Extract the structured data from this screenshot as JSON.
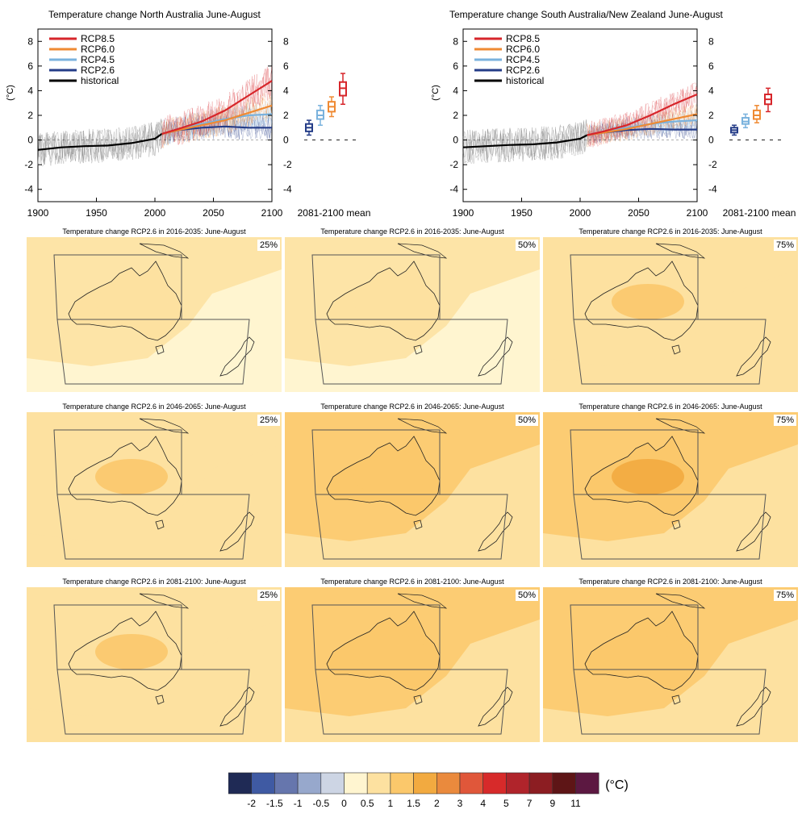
{
  "timeseries": [
    {
      "title": "Temperature change North Australia June-August",
      "ylabel": "(°C)",
      "mean_label": "2081-2100 mean"
    },
    {
      "title": "Temperature change South Australia/New Zealand June-August",
      "ylabel": "(°C)",
      "mean_label": "2081-2100 mean"
    }
  ],
  "maps": [
    {
      "title": "Temperature change RCP2.6 in 2016-2035: June-August",
      "pct": "25%"
    },
    {
      "title": "Temperature change RCP2.6 in 2016-2035: June-August",
      "pct": "50%"
    },
    {
      "title": "Temperature change RCP2.6 in 2016-2035: June-August",
      "pct": "75%"
    },
    {
      "title": "Temperature change RCP2.6 in 2046-2065: June-August",
      "pct": "25%"
    },
    {
      "title": "Temperature change RCP2.6 in 2046-2065: June-August",
      "pct": "50%"
    },
    {
      "title": "Temperature change RCP2.6 in 2046-2065: June-August",
      "pct": "75%"
    },
    {
      "title": "Temperature change RCP2.6 in 2081-2100: June-August",
      "pct": "25%"
    },
    {
      "title": "Temperature change RCP2.6 in 2081-2100: June-August",
      "pct": "50%"
    },
    {
      "title": "Temperature change RCP2.6 in 2081-2100: June-August",
      "pct": "75%"
    }
  ],
  "colorbar": {
    "unit": "(°C)",
    "labels": [
      "-2",
      "-1.5",
      "-1",
      "-0.5",
      "0",
      "0.5",
      "1",
      "1.5",
      "2",
      "3",
      "4",
      "5",
      "7",
      "9",
      "11"
    ],
    "colors": [
      "#1f2a55",
      "#3f5aa3",
      "#6676ad",
      "#97a8cc",
      "#cdd5e4",
      "#fff5d0",
      "#fde1a0",
      "#fbc86b",
      "#f2aa40",
      "#ea8a3d",
      "#e0573a",
      "#d72a2a",
      "#b0242b",
      "#8c1d22",
      "#5e1516",
      "#5c1841"
    ]
  },
  "chart_data": [
    {
      "type": "line",
      "title": "Temperature change North Australia June-August",
      "ylabel": "(°C)",
      "xlim": [
        1900,
        2100
      ],
      "ylim": [
        -5,
        9
      ],
      "xticks": [
        1900,
        1950,
        2000,
        2050,
        2100
      ],
      "yticks": [
        -4,
        -2,
        0,
        2,
        4,
        6,
        8
      ],
      "legend": "top-left",
      "series": [
        {
          "name": "RCP8.5",
          "color": "#d7262b",
          "x": [
            2006,
            2020,
            2040,
            2060,
            2080,
            2100
          ],
          "y": [
            0.5,
            0.9,
            1.5,
            2.4,
            3.6,
            4.8
          ]
        },
        {
          "name": "RCP6.0",
          "color": "#ef8a33",
          "x": [
            2006,
            2020,
            2040,
            2060,
            2080,
            2100
          ],
          "y": [
            0.5,
            0.8,
            1.2,
            1.6,
            2.2,
            2.8
          ]
        },
        {
          "name": "RCP4.5",
          "color": "#7ab2dd",
          "x": [
            2006,
            2020,
            2040,
            2060,
            2080,
            2100
          ],
          "y": [
            0.5,
            0.9,
            1.3,
            1.7,
            2.0,
            2.1
          ]
        },
        {
          "name": "RCP2.6",
          "color": "#253d88",
          "x": [
            2006,
            2020,
            2040,
            2060,
            2080,
            2100
          ],
          "y": [
            0.5,
            0.8,
            1.0,
            1.1,
            1.0,
            1.0
          ]
        },
        {
          "name": "historical",
          "color": "#000000",
          "x": [
            1900,
            1920,
            1940,
            1960,
            1980,
            2000,
            2006
          ],
          "y": [
            -0.8,
            -0.6,
            -0.5,
            -0.45,
            -0.25,
            0.1,
            0.5
          ]
        }
      ],
      "mean_label": "2081-2100 mean",
      "boxes": [
        {
          "name": "RCP2.6",
          "median": 1.0,
          "q1": 0.7,
          "q3": 1.3,
          "min": 0.4,
          "max": 1.6
        },
        {
          "name": "RCP4.5",
          "median": 2.0,
          "q1": 1.7,
          "q3": 2.4,
          "min": 1.2,
          "max": 2.8
        },
        {
          "name": "RCP6.0",
          "median": 2.7,
          "q1": 2.3,
          "q3": 3.1,
          "min": 1.9,
          "max": 3.5
        },
        {
          "name": "RCP8.5",
          "median": 4.2,
          "q1": 3.6,
          "q3": 4.7,
          "min": 2.9,
          "max": 5.4
        }
      ]
    },
    {
      "type": "line",
      "title": "Temperature change South Australia/New Zealand June-August",
      "ylabel": "(°C)",
      "xlim": [
        1900,
        2100
      ],
      "ylim": [
        -5,
        9
      ],
      "xticks": [
        1900,
        1950,
        2000,
        2050,
        2100
      ],
      "yticks": [
        -4,
        -2,
        0,
        2,
        4,
        6,
        8
      ],
      "legend": "top-left",
      "series": [
        {
          "name": "RCP8.5",
          "color": "#d7262b",
          "x": [
            2006,
            2020,
            2040,
            2060,
            2080,
            2100
          ],
          "y": [
            0.4,
            0.7,
            1.2,
            2.0,
            2.9,
            3.7
          ]
        },
        {
          "name": "RCP6.0",
          "color": "#ef8a33",
          "x": [
            2006,
            2020,
            2040,
            2060,
            2080,
            2100
          ],
          "y": [
            0.4,
            0.6,
            0.9,
            1.3,
            1.7,
            2.1
          ]
        },
        {
          "name": "RCP4.5",
          "color": "#7ab2dd",
          "x": [
            2006,
            2020,
            2040,
            2060,
            2080,
            2100
          ],
          "y": [
            0.4,
            0.7,
            1.0,
            1.3,
            1.5,
            1.6
          ]
        },
        {
          "name": "RCP2.6",
          "color": "#253d88",
          "x": [
            2006,
            2020,
            2040,
            2060,
            2080,
            2100
          ],
          "y": [
            0.4,
            0.6,
            0.8,
            0.9,
            0.85,
            0.85
          ]
        },
        {
          "name": "historical",
          "color": "#000000",
          "x": [
            1900,
            1920,
            1940,
            1960,
            1980,
            2000,
            2006
          ],
          "y": [
            -0.6,
            -0.5,
            -0.4,
            -0.35,
            -0.2,
            0.1,
            0.4
          ]
        }
      ],
      "mean_label": "2081-2100 mean",
      "boxes": [
        {
          "name": "RCP2.6",
          "median": 0.8,
          "q1": 0.6,
          "q3": 1.0,
          "min": 0.4,
          "max": 1.2
        },
        {
          "name": "RCP4.5",
          "median": 1.5,
          "q1": 1.3,
          "q3": 1.8,
          "min": 1.0,
          "max": 2.1
        },
        {
          "name": "RCP6.0",
          "median": 2.0,
          "q1": 1.7,
          "q3": 2.4,
          "min": 1.4,
          "max": 2.8
        },
        {
          "name": "RCP8.5",
          "median": 3.3,
          "q1": 2.9,
          "q3": 3.7,
          "min": 2.3,
          "max": 4.2
        }
      ]
    }
  ]
}
